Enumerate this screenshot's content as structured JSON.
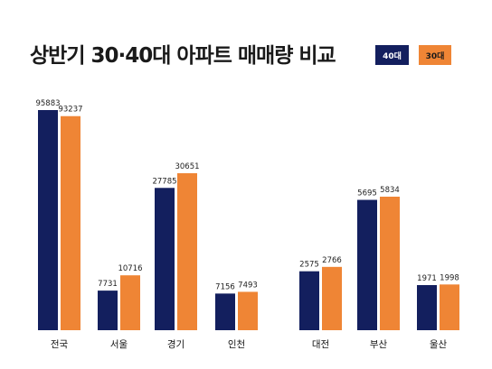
{
  "header": {
    "title": "상반기 30·40대 아파트 매매량 비교"
  },
  "colors": {
    "series40": "#131f5e",
    "series30": "#ef8535"
  },
  "chart_data": {
    "type": "bar",
    "title": "상반기 30·40대 아파트 매매량 비교",
    "categories": [
      "전국",
      "서울",
      "경기",
      "인천",
      "대전",
      "부산",
      "울산"
    ],
    "series": [
      {
        "name": "40대",
        "values": [
          95883,
          7731,
          27785,
          7156,
          2575,
          5695,
          1971
        ]
      },
      {
        "name": "30대",
        "values": [
          93237,
          10716,
          30651,
          7493,
          2766,
          5834,
          1998
        ]
      }
    ],
    "legend_position": "top-right",
    "grid": false
  }
}
